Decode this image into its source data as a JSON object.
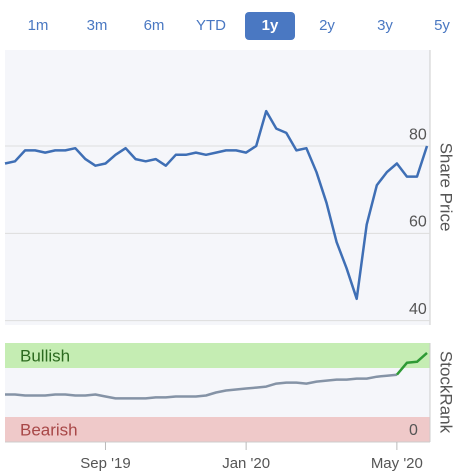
{
  "tabs": [
    "1m",
    "3m",
    "6m",
    "YTD",
    "1y",
    "2y",
    "3y",
    "5y"
  ],
  "active_tab": 4,
  "chart_data": [
    {
      "type": "line",
      "y_label": "Share Price",
      "color": "#3f6fb5",
      "values": [
        76,
        76.5,
        79,
        79,
        78.5,
        79,
        79,
        79.5,
        77,
        75.5,
        76,
        78,
        79.5,
        77,
        76.5,
        77,
        75.5,
        78,
        78,
        78.5,
        78,
        78.5,
        79,
        79,
        78.5,
        80,
        88,
        84,
        83,
        79,
        79.5,
        74,
        67,
        58,
        52,
        45,
        62,
        71,
        74,
        76,
        73,
        73,
        80
      ],
      "ylim": [
        39,
        102
      ],
      "yticks": [
        40,
        60,
        80
      ],
      "grid": true
    },
    {
      "type": "line",
      "y_label": "StockRank",
      "bands": [
        "Bullish",
        "Bearish"
      ],
      "categories": [
        null,
        null,
        null,
        null,
        null,
        null,
        null,
        null,
        null,
        null,
        "Sep '19",
        null,
        null,
        null,
        null,
        null,
        null,
        null,
        null,
        null,
        null,
        null,
        null,
        null,
        "Jan '20",
        null,
        null,
        null,
        null,
        null,
        null,
        null,
        null,
        null,
        null,
        null,
        null,
        null,
        null,
        "May '20",
        null,
        null,
        null
      ],
      "series": [
        {
          "color": "#8593a6",
          "values": [
            48,
            48,
            47,
            47,
            47,
            48,
            48,
            47,
            47,
            48,
            46,
            44,
            44,
            44,
            44,
            45,
            45,
            46,
            46,
            46,
            47,
            50,
            52,
            53,
            54,
            55,
            56,
            59,
            60,
            60,
            59,
            61,
            62,
            63,
            63,
            64,
            64,
            66,
            67,
            68,
            null,
            null,
            null
          ]
        },
        {
          "color": "#2e9a35",
          "values": [
            null,
            null,
            null,
            null,
            null,
            null,
            null,
            null,
            null,
            null,
            null,
            null,
            null,
            null,
            null,
            null,
            null,
            null,
            null,
            null,
            null,
            null,
            null,
            null,
            null,
            null,
            null,
            null,
            null,
            null,
            null,
            null,
            null,
            null,
            null,
            null,
            null,
            null,
            null,
            68,
            80,
            81,
            90
          ]
        }
      ],
      "ylim": [
        0,
        100
      ],
      "yticks": [
        0
      ]
    }
  ]
}
